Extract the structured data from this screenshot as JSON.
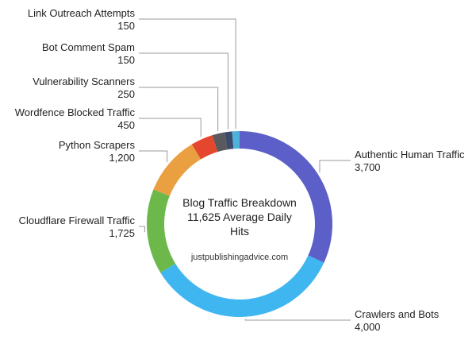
{
  "chart_data": {
    "type": "donut",
    "title": "Blog Traffic Breakdown",
    "subtitle": "11,625 Average Daily Hits",
    "source": "justpublishingadvice.com",
    "categories": [
      "Authentic Human Traffic",
      "Crawlers and Bots",
      "Cloudflare Firewall Traffic",
      "Python Scrapers",
      "Wordfence Blocked Traffic",
      "Vulnerability Scanners",
      "Bot Comment Spam",
      "Link Outreach Attempts"
    ],
    "values": [
      3700,
      4000,
      1725,
      1200,
      450,
      250,
      150,
      150
    ],
    "value_labels": [
      "3,700",
      "4,000",
      "1,725",
      "1,200",
      "450",
      "250",
      "150",
      "150"
    ],
    "colors": [
      "#5b5fc7",
      "#3fb6ef",
      "#6cb84a",
      "#eaa040",
      "#e4472d",
      "#5a5a5e",
      "#3c4a6c",
      "#4fb2da"
    ]
  }
}
